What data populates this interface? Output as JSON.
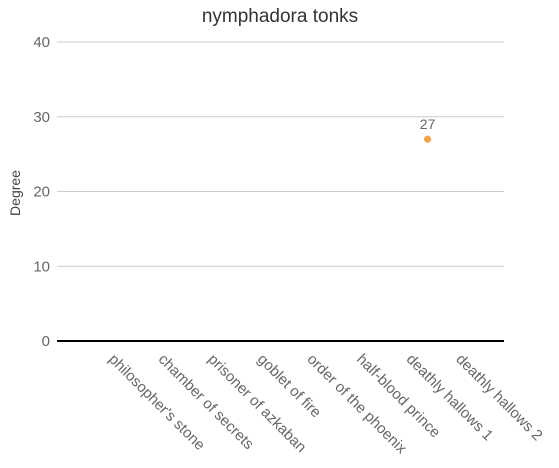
{
  "chart_data": {
    "type": "scatter",
    "title": "nymphadora tonks",
    "xlabel": "",
    "ylabel": "Degree",
    "ylim": [
      0,
      40
    ],
    "yticks": [
      0,
      10,
      20,
      30,
      40
    ],
    "grid": true,
    "categories": [
      "philosopher's stone",
      "chamber of secrets",
      "prisoner of azkaban",
      "goblet of fire",
      "order of the phoenix",
      "half-blood prince",
      "deathly hallows 1",
      "deathly hallows 2"
    ],
    "values": [
      null,
      null,
      null,
      null,
      null,
      null,
      27,
      null
    ],
    "data_labels": [
      null,
      null,
      null,
      null,
      null,
      null,
      "27",
      null
    ],
    "point_color": "#f4a54a",
    "gridline_color": "#cccccc",
    "baseline_color": "#000000"
  }
}
